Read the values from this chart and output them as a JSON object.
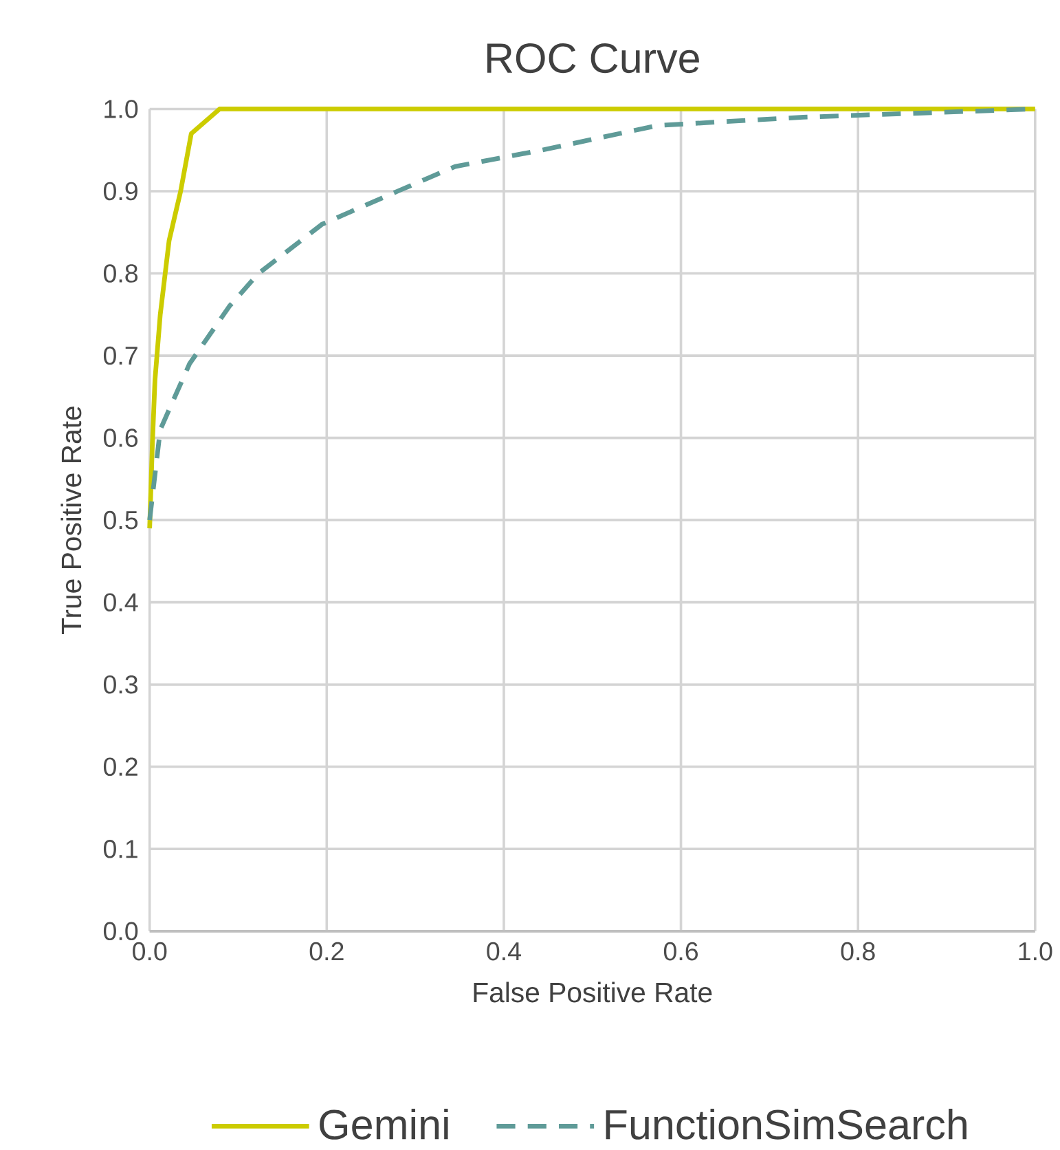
{
  "chart_data": {
    "type": "line",
    "title": "ROC Curve",
    "xlabel": "False Positive Rate",
    "ylabel": "True Positive Rate",
    "xlim": [
      0,
      1
    ],
    "ylim": [
      0,
      1
    ],
    "xticks": [
      {
        "value": 0,
        "label": "0.0"
      },
      0.2,
      0.4,
      0.6,
      0.8,
      {
        "value": 1,
        "label": "1.0"
      }
    ],
    "yticks": [
      {
        "value": 0,
        "label": "0.0"
      },
      0.1,
      0.2,
      0.3,
      0.4,
      0.5,
      0.6,
      0.7,
      0.8,
      0.9,
      {
        "value": 1,
        "label": "1.0"
      }
    ],
    "grid": true,
    "legend": "bottom",
    "marker": "none",
    "series": [
      {
        "name": "Gemini",
        "color": "#cccc00",
        "line_style": "solid",
        "x": [
          0,
          0.003,
          0.006,
          0.012,
          0.022,
          0.035,
          0.047,
          0.079,
          1
        ],
        "values": [
          0.49,
          0.59,
          0.67,
          0.75,
          0.84,
          0.9,
          0.97,
          1,
          1
        ]
      },
      {
        "name": "FunctionSimSearch",
        "color": "#5f9b98",
        "line_style": "dashed",
        "x": [
          0,
          0.012,
          0.045,
          0.09,
          0.123,
          0.195,
          0.28,
          0.345,
          0.443,
          0.574,
          0.738,
          1
        ],
        "values": [
          0.5,
          0.61,
          0.69,
          0.76,
          0.8,
          0.86,
          0.9,
          0.93,
          0.95,
          0.98,
          0.99,
          1
        ]
      }
    ]
  }
}
